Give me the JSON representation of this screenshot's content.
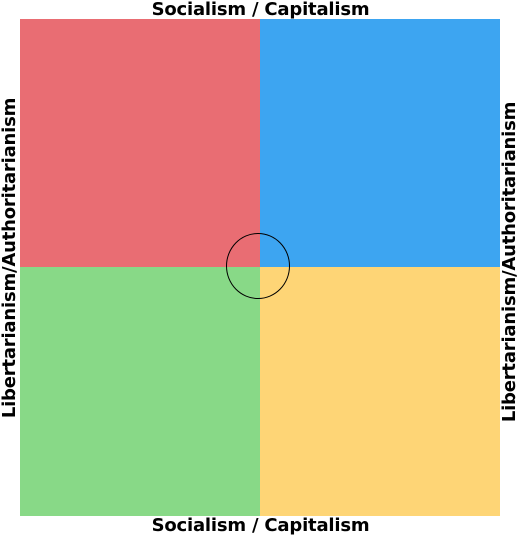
{
  "axes": {
    "top_label": "Socialism / Capitalism",
    "bottom_label": "Socialism / Capitalism",
    "left_label": "Libertarianism/Authoritarianism",
    "right_label": "Libertarianism/Authoritarianism"
  },
  "quadrants": {
    "top_left_color": "#e96d73",
    "top_right_color": "#3da5f1",
    "bottom_left_color": "#88d987",
    "bottom_right_color": "#fed576"
  },
  "marker": {
    "shape": "circle",
    "color": "#000000"
  }
}
